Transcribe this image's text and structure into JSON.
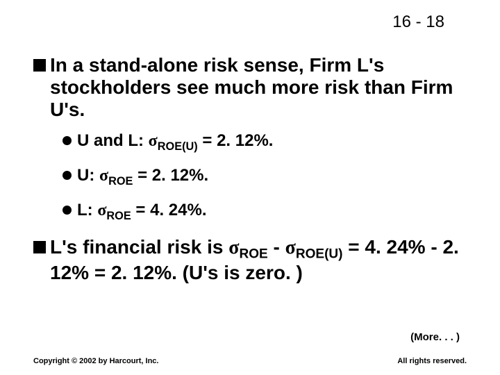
{
  "page_number": "16 - 18",
  "bullets": {
    "b1": "In a stand-alone risk sense, Firm L's stockholders see much more risk than Firm U's.",
    "sub1_prefix": "U and L:  ",
    "sub1_sigma": "σ",
    "sub1_subscript": "ROE(U)",
    "sub1_suffix": " = 2. 12%.",
    "sub2_prefix": "U:  ",
    "sub2_sigma": "σ",
    "sub2_subscript": "ROE",
    "sub2_suffix": " = 2. 12%.",
    "sub3_prefix": "L:  ",
    "sub3_sigma": "σ",
    "sub3_subscript": "ROE",
    "sub3_suffix": " = 4. 24%.",
    "b2_part1": "L's financial risk is ",
    "b2_sigma1": "σ",
    "b2_sub1": "ROE",
    "b2_mid": " - ",
    "b2_sigma2": "σ",
    "b2_sub2": "ROE(U)",
    "b2_part2": " = 4. 24% - 2. 12% = 2. 12%.  (U's is zero. )"
  },
  "more": "(More. . . )",
  "footer_left": "Copyright © 2002 by Harcourt, Inc.",
  "footer_right": "All rights reserved."
}
